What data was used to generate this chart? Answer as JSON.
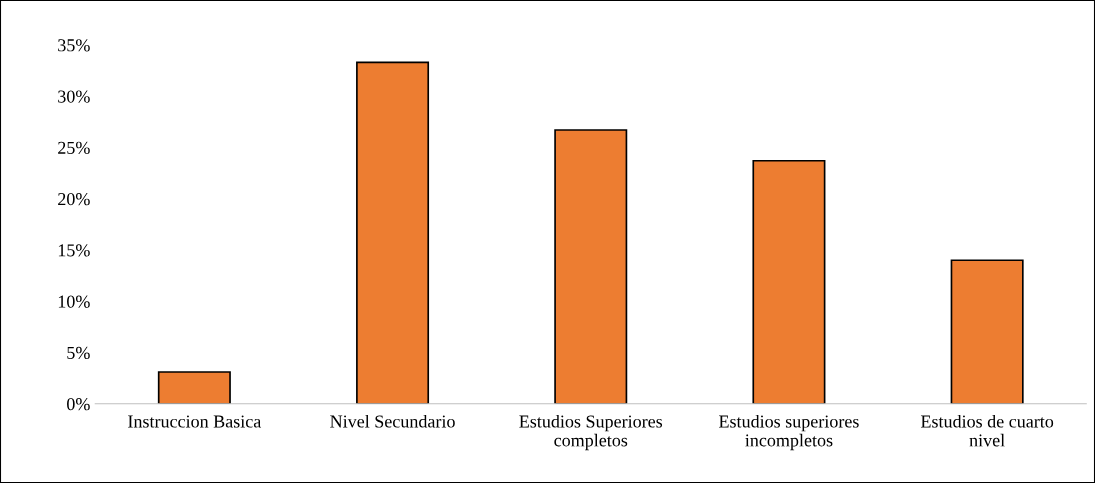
{
  "chart_data": {
    "type": "bar",
    "categories": [
      "Instruccion Basica",
      "Nivel Secundario",
      "Estudios Superiores completos",
      "Estudios superiores incompletos",
      "Estudios de cuarto nivel"
    ],
    "values": [
      3.1,
      33.3,
      26.7,
      23.7,
      14.0
    ],
    "color": "#ed7d31",
    "ylim": [
      0,
      35
    ],
    "yticks": [
      {
        "value": 0,
        "label": "0%"
      },
      {
        "value": 5,
        "label": "5%"
      },
      {
        "value": 10,
        "label": "10%"
      },
      {
        "value": 15,
        "label": "15%"
      },
      {
        "value": 20,
        "label": "20%"
      },
      {
        "value": 25,
        "label": "25%"
      },
      {
        "value": 30,
        "label": "30%"
      },
      {
        "value": 35,
        "label": "35%"
      }
    ],
    "grid": false,
    "legend": false
  }
}
